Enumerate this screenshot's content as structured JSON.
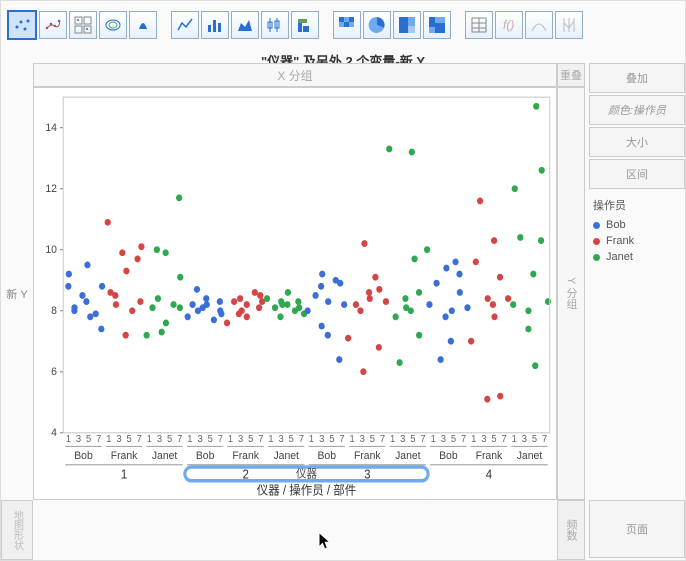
{
  "toolbar": {
    "buttons": [
      {
        "name": "scatter-icon",
        "sel": true
      },
      {
        "name": "scatter-smooth-icon"
      },
      {
        "name": "scatter-matrix-icon"
      },
      {
        "name": "contour-icon"
      },
      {
        "name": "density-icon"
      },
      {
        "gap": true
      },
      {
        "name": "line-icon"
      },
      {
        "name": "bar-icon"
      },
      {
        "name": "area-icon"
      },
      {
        "name": "box-icon"
      },
      {
        "name": "hist-icon"
      },
      {
        "gap": true
      },
      {
        "name": "heatmap-icon"
      },
      {
        "name": "pie-icon"
      },
      {
        "name": "treemap-icon"
      },
      {
        "name": "mosaic-icon"
      },
      {
        "gap": true
      },
      {
        "name": "table-icon"
      },
      {
        "name": "formula-icon"
      },
      {
        "name": "dist-icon"
      },
      {
        "name": "parallel-icon"
      }
    ]
  },
  "title": "\"仪器\" 及另外 2 个变量-新 Y",
  "labels": {
    "xgroup": "X 分组",
    "ygroup": "Y 分组",
    "reset": "重叠",
    "ylabel": "新 Y",
    "mapshape": "地图形状",
    "freq": "频数",
    "xaxis_combined": "仪器 / 操作员 / 部件",
    "xaxis_overlay": "仪器"
  },
  "right": {
    "overlay": "叠加",
    "colorby": "颜色:操作员",
    "size": "大小",
    "interval": "区间",
    "page": "页面",
    "legend_title": "操作员",
    "legend": [
      {
        "label": "Bob",
        "color": "#3b6fd6"
      },
      {
        "label": "Frank",
        "color": "#d64545"
      },
      {
        "label": "Janet",
        "color": "#2fa84f"
      }
    ]
  },
  "chart": {
    "type": "scatter",
    "ylim": [
      4,
      15
    ],
    "yticks": [
      4,
      6,
      8,
      10,
      12,
      14
    ],
    "background": "#ffffff",
    "grid": false,
    "marker_radius": 3,
    "instruments": [
      1,
      2,
      3,
      4
    ],
    "operators": [
      "Bob",
      "Frank",
      "Janet"
    ],
    "parts": [
      1,
      3,
      5,
      7
    ],
    "colors": {
      "Bob": "#3b6fd6",
      "Frank": "#d64545",
      "Janet": "#2fa84f"
    },
    "slider": {
      "from_instr": 2,
      "to_instr": 3,
      "color": "#6fa9ef"
    },
    "data": {
      "1": {
        "Bob": {
          "1": [
            8.8,
            9.2
          ],
          "3": [
            8.1,
            8.5,
            8.0
          ],
          "5": [
            8.3,
            7.8,
            9.5
          ],
          "7": [
            7.4,
            7.9,
            8.8
          ]
        },
        "Frank": {
          "1": [
            8.6,
            10.9
          ],
          "3": [
            8.2,
            9.9,
            8.5
          ],
          "5": [
            7.2,
            8.0,
            9.3
          ],
          "7": [
            8.3,
            9.7,
            10.1
          ]
        },
        "Janet": {
          "1": [
            8.1,
            7.2
          ],
          "3": [
            8.4,
            7.3,
            10.0
          ],
          "5": [
            9.9,
            8.2,
            7.6
          ],
          "7": [
            11.7,
            8.1,
            9.1
          ]
        }
      },
      "2": {
        "Bob": {
          "1": [
            8.2,
            7.8
          ],
          "3": [
            8.0,
            8.1,
            8.7
          ],
          "5": [
            8.4,
            7.7,
            8.2
          ],
          "7": [
            8.0,
            8.3,
            7.9
          ]
        },
        "Frank": {
          "1": [
            8.3,
            7.6
          ],
          "3": [
            8.4,
            8.0,
            7.9
          ],
          "5": [
            8.2,
            8.6,
            7.8
          ],
          "7": [
            8.1,
            8.3,
            8.5
          ]
        },
        "Janet": {
          "1": [
            8.1,
            8.4
          ],
          "3": [
            8.2,
            7.8,
            8.3
          ],
          "5": [
            8.6,
            8.0,
            8.2
          ],
          "7": [
            8.3,
            7.9,
            8.1
          ]
        }
      },
      "3": {
        "Bob": {
          "1": [
            8.5,
            8.0
          ],
          "3": [
            9.2,
            7.5,
            8.8
          ],
          "5": [
            8.3,
            9.0,
            7.2
          ],
          "7": [
            6.4,
            8.2,
            8.9
          ]
        },
        "Frank": {
          "1": [
            8.2,
            7.1
          ],
          "3": [
            10.2,
            8.0,
            6.0
          ],
          "5": [
            8.4,
            9.1,
            8.6
          ],
          "7": [
            6.8,
            8.3,
            8.7
          ]
        },
        "Janet": {
          "1": [
            7.8,
            13.3
          ],
          "3": [
            8.1,
            6.3,
            8.4
          ],
          "5": [
            13.2,
            9.7,
            8.0
          ],
          "7": [
            8.6,
            10.0,
            7.2
          ]
        }
      },
      "4": {
        "Bob": {
          "1": [
            8.9,
            8.2
          ],
          "3": [
            9.4,
            6.4,
            7.8
          ],
          "5": [
            8.0,
            9.6,
            7.0
          ],
          "7": [
            9.2,
            8.1,
            8.6
          ]
        },
        "Frank": {
          "1": [
            9.6,
            7.0
          ],
          "3": [
            8.4,
            11.6,
            5.1
          ],
          "5": [
            10.3,
            7.8,
            8.2
          ],
          "7": [
            5.2,
            8.4,
            9.1
          ]
        },
        "Janet": {
          "1": [
            12.0,
            8.2
          ],
          "3": [
            7.4,
            10.4,
            8.0
          ],
          "5": [
            14.7,
            9.2,
            6.2
          ],
          "7": [
            12.6,
            8.3,
            10.3
          ]
        }
      }
    }
  }
}
